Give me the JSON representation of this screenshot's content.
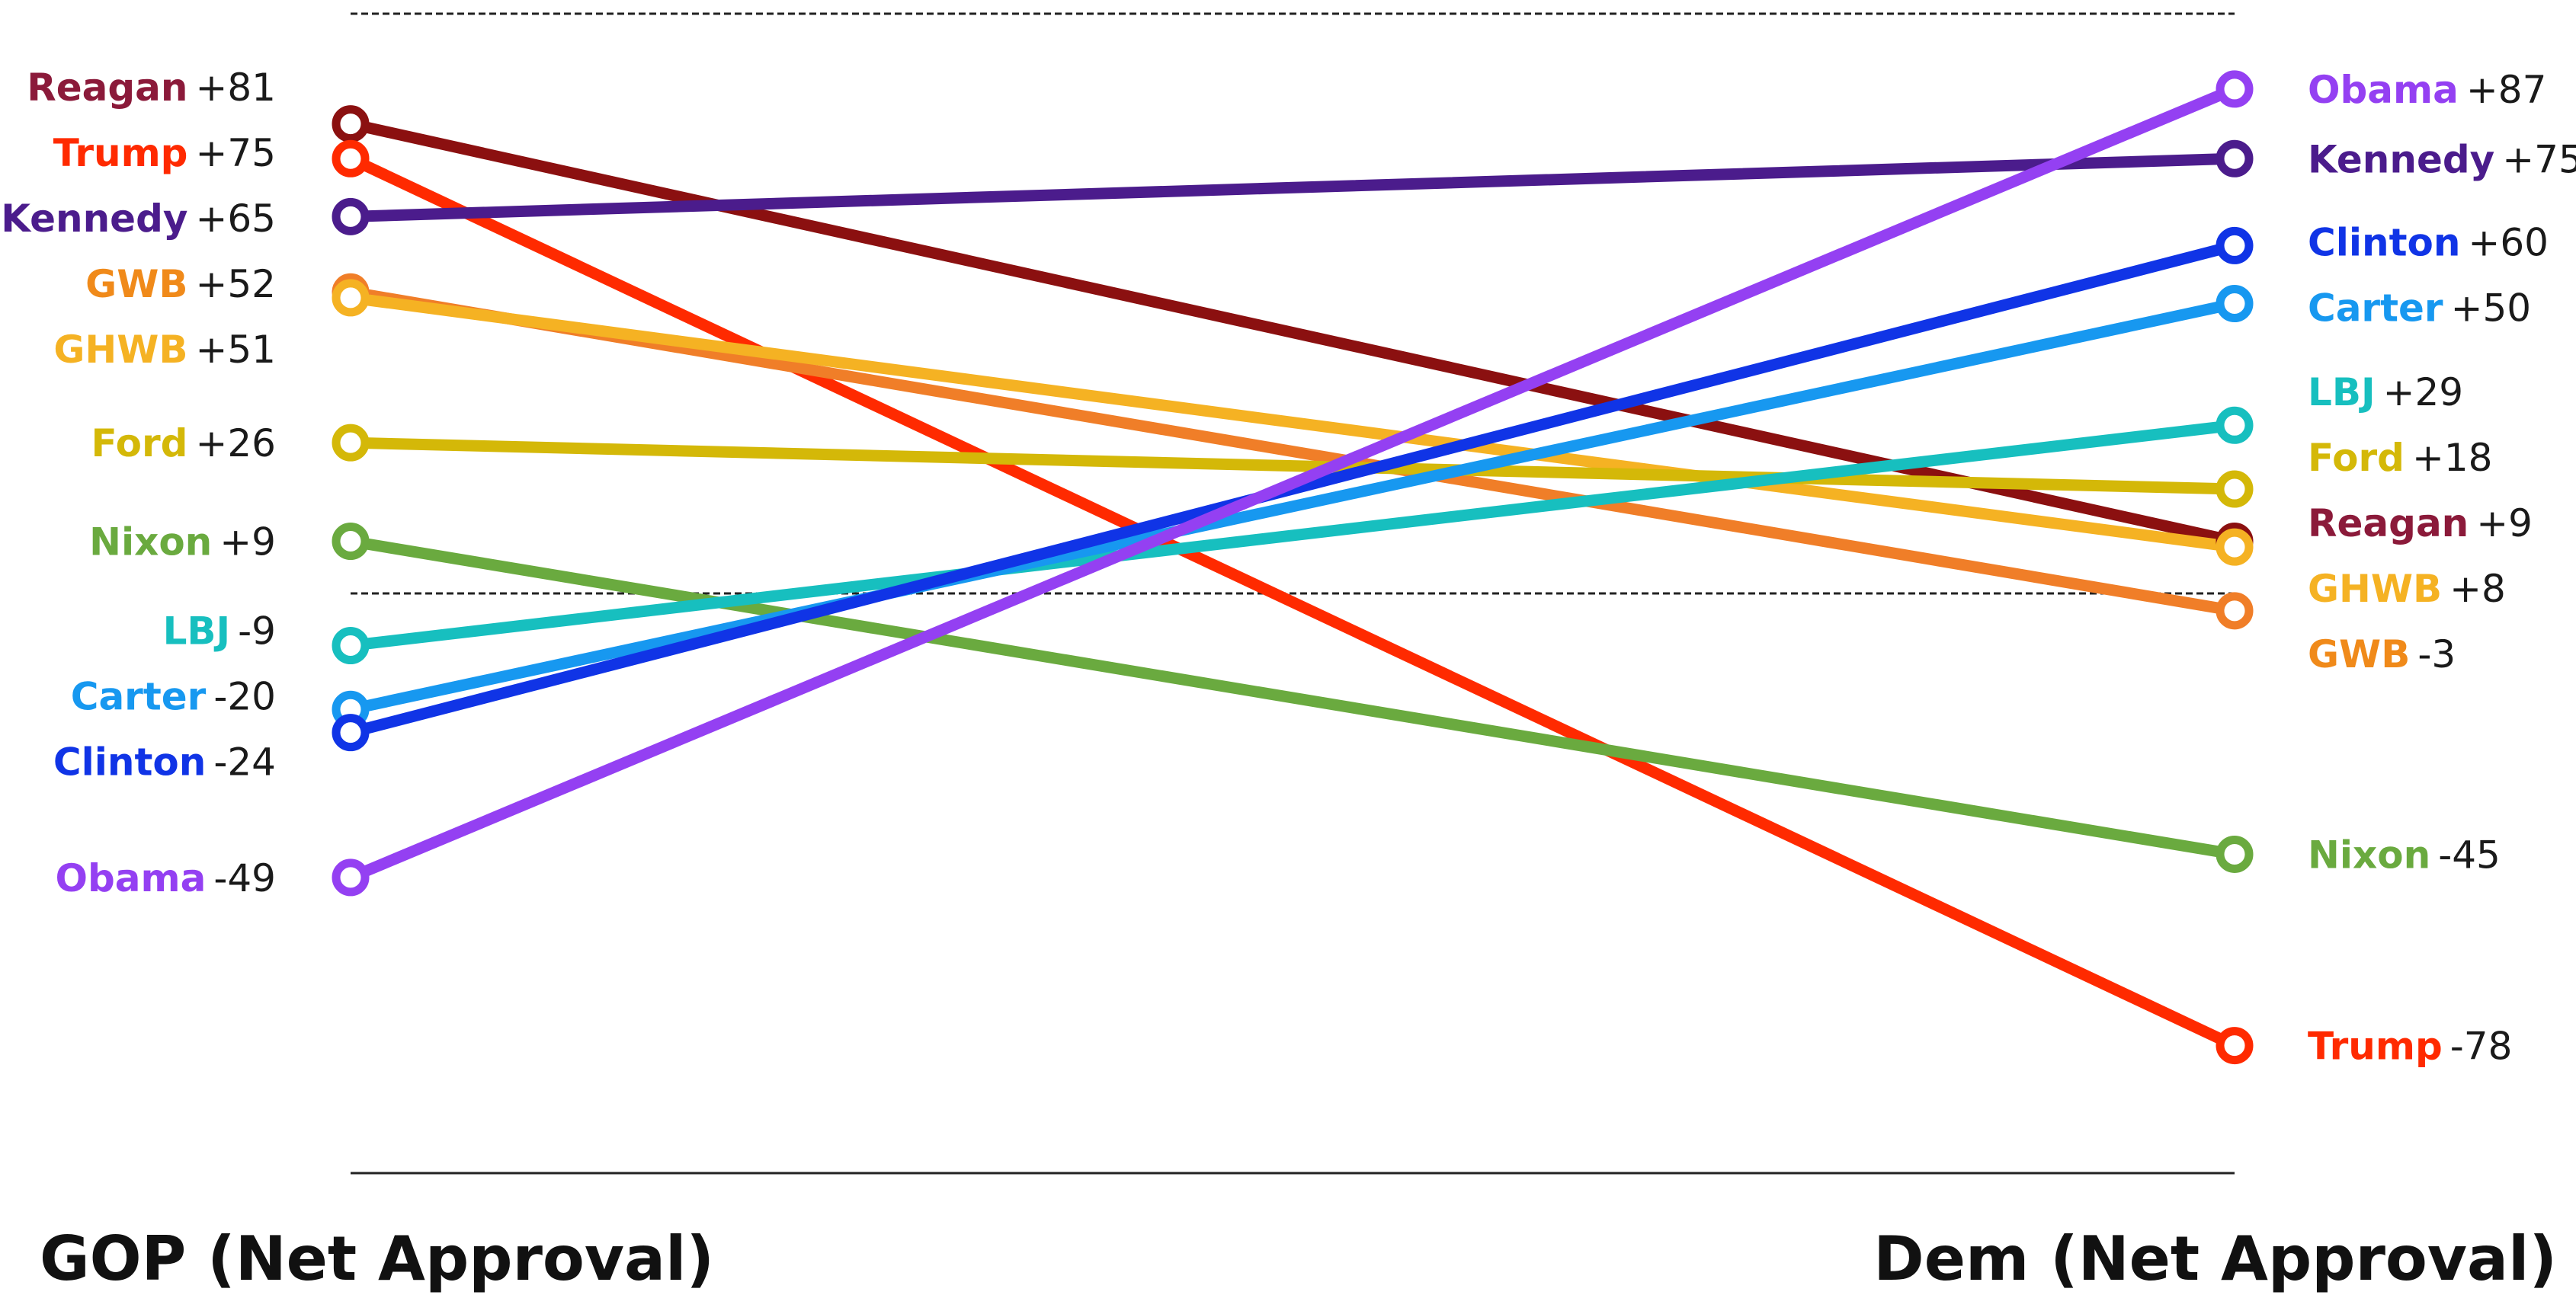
{
  "chart_data": {
    "type": "slope",
    "x": [
      "GOP (Net Approval)",
      "Dem (Net Approval)"
    ],
    "ylim": [
      -100,
      100
    ],
    "reference_lines": [
      {
        "value": 100,
        "style": "dashed"
      },
      {
        "value": 0,
        "style": "dashed"
      },
      {
        "value": -100,
        "style": "solid"
      }
    ],
    "series": [
      {
        "name": "Reagan",
        "gop": 81,
        "gop_label": "+81",
        "dem": 9,
        "dem_label": "+9",
        "color": "#8B1010",
        "label_color": "#8B1A3A"
      },
      {
        "name": "Trump",
        "gop": 75,
        "gop_label": "+75",
        "dem": -78,
        "dem_label": "-78",
        "color": "#FF2A00",
        "label_color": "#FF2A00"
      },
      {
        "name": "Kennedy",
        "gop": 65,
        "gop_label": "+65",
        "dem": 75,
        "dem_label": "+75",
        "color": "#4B1C8C",
        "label_color": "#4B1C8C"
      },
      {
        "name": "GWB",
        "gop": 52,
        "gop_label": "+52",
        "dem": -3,
        "dem_label": "-3",
        "color": "#F07E28",
        "label_color": "#F08A1A"
      },
      {
        "name": "GHWB",
        "gop": 51,
        "gop_label": "+51",
        "dem": 8,
        "dem_label": "+8",
        "color": "#F5B223",
        "label_color": "#F5B223"
      },
      {
        "name": "Ford",
        "gop": 26,
        "gop_label": "+26",
        "dem": 18,
        "dem_label": "+18",
        "color": "#D4B808",
        "label_color": "#D4B808"
      },
      {
        "name": "Nixon",
        "gop": 9,
        "gop_label": "+9",
        "dem": -45,
        "dem_label": "-45",
        "color": "#6AAA3F",
        "label_color": "#6AAA3F"
      },
      {
        "name": "LBJ",
        "gop": -9,
        "gop_label": "-9",
        "dem": 29,
        "dem_label": "+29",
        "color": "#17BFBF",
        "label_color": "#17BFBF"
      },
      {
        "name": "Carter",
        "gop": -20,
        "gop_label": "-20",
        "dem": 50,
        "dem_label": "+50",
        "color": "#1798F0",
        "label_color": "#1798F0"
      },
      {
        "name": "Clinton",
        "gop": -24,
        "gop_label": "-24",
        "dem": 60,
        "dem_label": "+60",
        "color": "#1034E6",
        "label_color": "#1034E6"
      },
      {
        "name": "Obama",
        "gop": -49,
        "gop_label": "-49",
        "dem": 87,
        "dem_label": "+87",
        "color": "#9440F2",
        "label_color": "#9440F2"
      }
    ]
  }
}
